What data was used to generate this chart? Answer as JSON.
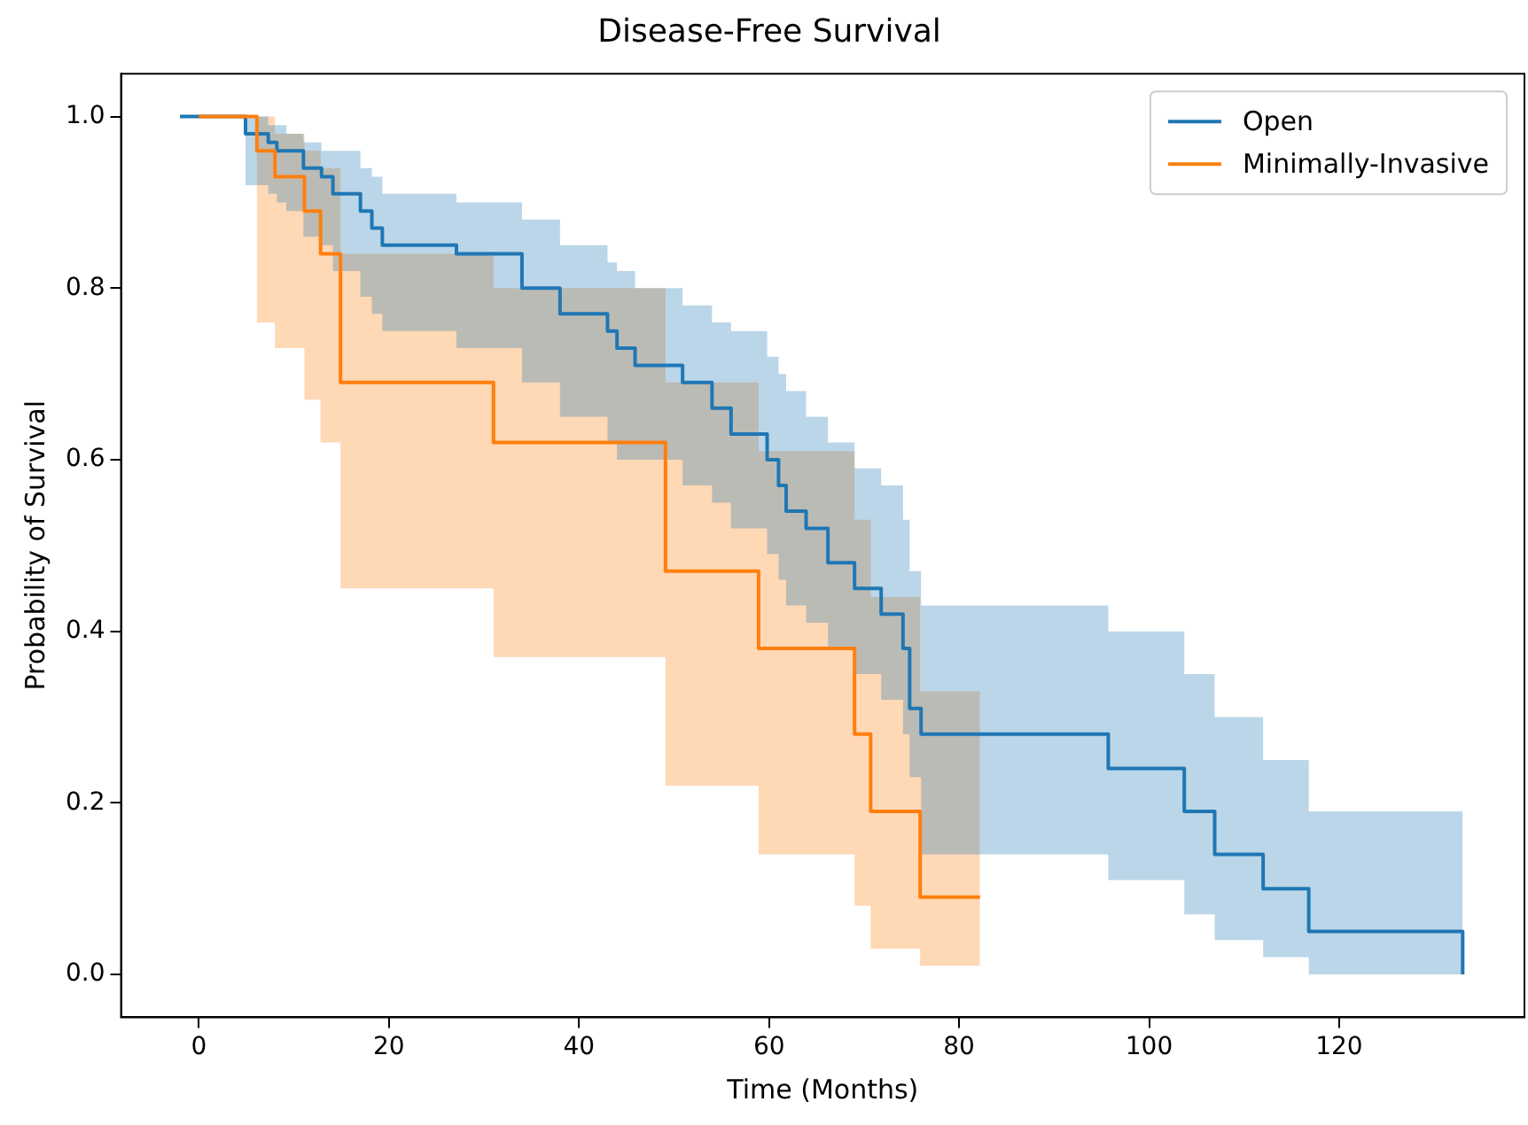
{
  "chart_data": {
    "type": "step",
    "title": "Disease-Free Survival",
    "xlabel": "Time (Months)",
    "ylabel": "Probability of Survival",
    "xlim": [
      -8.2,
      139.5
    ],
    "ylim": [
      -0.05,
      1.05
    ],
    "xticks": [
      0,
      20,
      40,
      60,
      80,
      100,
      120
    ],
    "yticks": [
      {
        "value": 0,
        "label": "0.0"
      },
      {
        "value": 0.2,
        "label": "0.2"
      },
      {
        "value": 0.4,
        "label": "0.4"
      },
      {
        "value": 0.6,
        "label": "0.6"
      },
      {
        "value": 0.8,
        "label": "0.8"
      },
      {
        "value": 1,
        "label": "1.0"
      }
    ],
    "grid": false,
    "legend": "top right",
    "marker": "none",
    "line_style": "solid",
    "series": [
      {
        "name": "Open",
        "color": "#1f77b4",
        "x": [
          -2,
          4.9,
          7.3,
          8.2,
          9.2,
          11.0,
          12.9,
          14.1,
          17.0,
          18.2,
          19.3,
          27.1,
          34.0,
          38.0,
          43.0,
          44.0,
          45.9,
          50.9,
          54.0,
          56.0,
          59.8,
          61.0,
          61.8,
          63.9,
          66.2,
          69.0,
          71.8,
          74.1,
          74.8,
          76.0,
          95.7,
          103.7,
          106.9,
          112.0,
          116.8,
          133.0
        ],
        "values": [
          1.0,
          0.98,
          0.97,
          0.96,
          0.96,
          0.94,
          0.93,
          0.91,
          0.89,
          0.87,
          0.85,
          0.84,
          0.8,
          0.77,
          0.75,
          0.73,
          0.71,
          0.69,
          0.66,
          0.63,
          0.6,
          0.57,
          0.54,
          0.52,
          0.48,
          0.45,
          0.42,
          0.38,
          0.31,
          0.28,
          0.24,
          0.19,
          0.14,
          0.1,
          0.05,
          0.0
        ],
        "lower": [
          1.0,
          0.92,
          0.91,
          0.9,
          0.89,
          0.86,
          0.85,
          0.82,
          0.79,
          0.77,
          0.75,
          0.73,
          0.69,
          0.65,
          0.62,
          0.6,
          0.6,
          0.57,
          0.55,
          0.52,
          0.49,
          0.46,
          0.43,
          0.41,
          0.38,
          0.35,
          0.32,
          0.28,
          0.23,
          0.14,
          0.11,
          0.07,
          0.04,
          0.02,
          0.0,
          0.0
        ],
        "upper": [
          1.0,
          1.0,
          0.99,
          0.99,
          0.98,
          0.97,
          0.96,
          0.96,
          0.94,
          0.93,
          0.91,
          0.9,
          0.88,
          0.85,
          0.83,
          0.82,
          0.8,
          0.78,
          0.76,
          0.75,
          0.72,
          0.7,
          0.68,
          0.65,
          0.62,
          0.59,
          0.57,
          0.53,
          0.47,
          0.43,
          0.4,
          0.35,
          0.3,
          0.25,
          0.19,
          0.19
        ]
      },
      {
        "name": "Minimally-Invasive",
        "color": "#ff7f0e",
        "x": [
          0,
          6.1,
          8.0,
          11.1,
          12.8,
          14.9,
          31.0,
          49.1,
          58.9,
          69.0,
          70.7,
          75.9,
          82.2
        ],
        "values": [
          1.0,
          0.96,
          0.93,
          0.89,
          0.84,
          0.69,
          0.62,
          0.47,
          0.38,
          0.28,
          0.19,
          0.09,
          0.09
        ],
        "lower": [
          1.0,
          0.76,
          0.73,
          0.67,
          0.62,
          0.45,
          0.37,
          0.22,
          0.14,
          0.08,
          0.03,
          0.01,
          0.01
        ],
        "upper": [
          1.0,
          1.0,
          0.98,
          0.96,
          0.94,
          0.84,
          0.8,
          0.69,
          0.61,
          0.53,
          0.44,
          0.33,
          0.33
        ]
      }
    ]
  }
}
